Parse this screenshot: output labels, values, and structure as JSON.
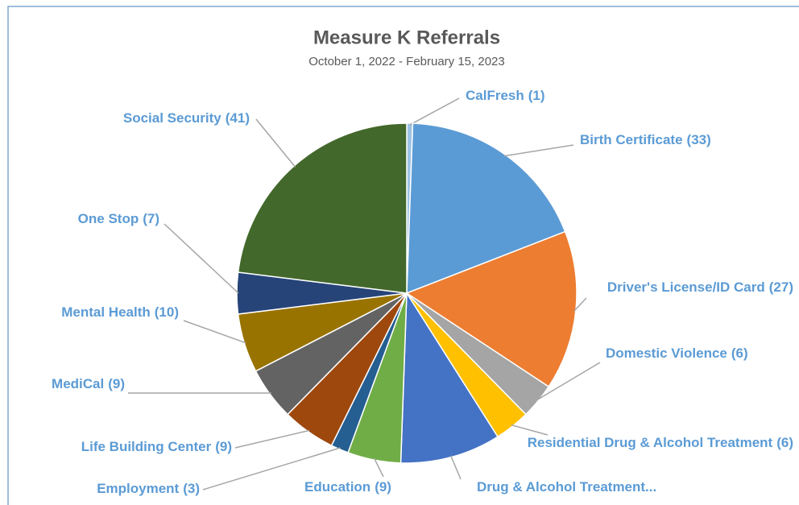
{
  "chart_data": {
    "type": "pie",
    "title": "Measure K Referrals",
    "subtitle": "October 1, 2022 - February 15, 2023",
    "categories": [
      "CalFresh",
      "Birth Certificate",
      "Driver's License/ID Card",
      "Domestic Violence",
      "Residential Drug & Alcohol Treatment",
      "Drug & Alcohol Treatment...",
      "Education",
      "Employment",
      "Life Building Center",
      "MediCal",
      "Mental Health",
      "One Stop",
      "Social Security"
    ],
    "values": [
      1,
      33,
      27,
      6,
      6,
      17,
      9,
      3,
      9,
      9,
      10,
      7,
      41
    ],
    "value_labels": [
      "(1)",
      "(33)",
      "(27)",
      "(6)",
      "(6)",
      null,
      "(9)",
      "(3)",
      "(9)",
      "(9)",
      "(10)",
      "(7)",
      "(41)"
    ],
    "colors": [
      "#9dc3e6",
      "#5b9bd5",
      "#ed7d31",
      "#a5a5a5",
      "#ffc000",
      "#4472c4",
      "#70ad47",
      "#255e91",
      "#9e480e",
      "#636363",
      "#997300",
      "#264478",
      "#43682b"
    ]
  }
}
